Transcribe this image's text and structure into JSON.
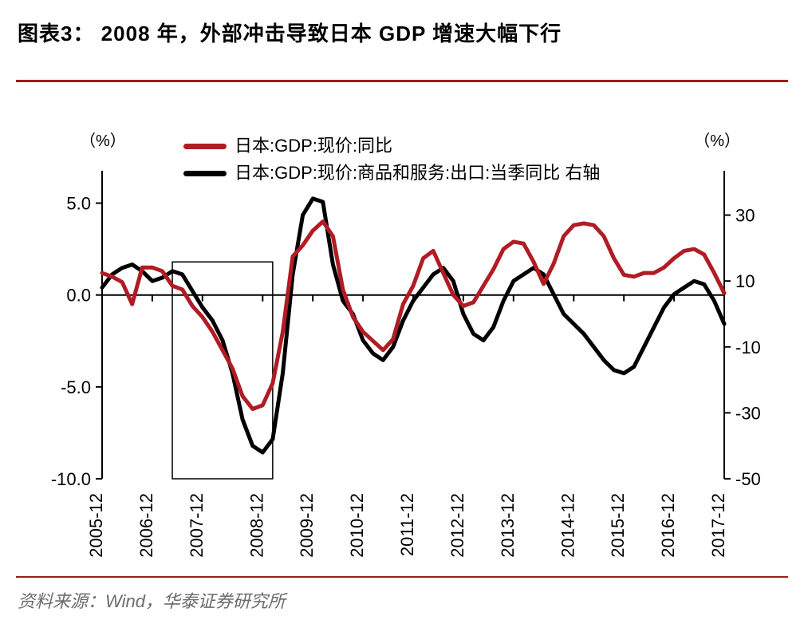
{
  "title": "图表3： 2008 年，外部冲击导致日本 GDP 增速大幅下行",
  "source": "资料来源：Wind，华泰证券研究所",
  "unit_left": "（%）",
  "unit_right": "（%）",
  "legend": {
    "series1": "日本:GDP:现价:同比",
    "series2": "日本:GDP:现价:商品和服务:出口:当季同比 右轴"
  },
  "chart": {
    "type": "line-dual-axis",
    "background_color": "#ffffff",
    "axis_color": "#000000",
    "line_width": 5,
    "series1_color": "#b11c24",
    "series2_color": "#000000",
    "highlight_box_color": "#000000",
    "left_axis": {
      "min": -10.0,
      "max": 6.5,
      "ticks": [
        -10.0,
        -5.0,
        0.0,
        5.0
      ]
    },
    "right_axis": {
      "min": -50,
      "max": 42,
      "ticks": [
        -50,
        -30,
        -10,
        10,
        30
      ]
    },
    "x_categories": [
      "2005-12",
      "2006-12",
      "2007-12",
      "2008-12",
      "2009-12",
      "2010-12",
      "2011-12",
      "2012-12",
      "2013-12",
      "2014-12",
      "2015-12",
      "2016-12",
      "2017-12"
    ],
    "highlight_range_x": [
      7,
      17
    ],
    "highlight_range_y_left": [
      -10.0,
      1.8
    ],
    "series1": {
      "name": "日本:GDP:现价:同比",
      "axis": "left",
      "values": [
        1.2,
        1.0,
        0.7,
        -0.5,
        1.5,
        1.5,
        1.3,
        0.5,
        0.3,
        -0.6,
        -1.2,
        -2.0,
        -3.0,
        -4.0,
        -5.5,
        -6.2,
        -6.0,
        -4.8,
        -2.0,
        2.1,
        2.7,
        3.5,
        4.0,
        3.2,
        0.3,
        -1.2,
        -2.0,
        -2.5,
        -3.0,
        -2.4,
        -0.5,
        0.5,
        2.0,
        2.4,
        1.2,
        0.0,
        -0.6,
        -0.4,
        0.5,
        1.4,
        2.5,
        2.9,
        2.8,
        1.8,
        0.6,
        1.7,
        3.2,
        3.8,
        3.9,
        3.8,
        3.2,
        2.0,
        1.1,
        1.0,
        1.2,
        1.2,
        1.5,
        2.0,
        2.4,
        2.5,
        2.2,
        1.2,
        0.1
      ]
    },
    "series2": {
      "name": "日本:GDP:现价:商品和服务:出口:当季同比 右轴",
      "axis": "right",
      "values": [
        8,
        12,
        14,
        15,
        13,
        10,
        11,
        13,
        12,
        7,
        2,
        -2,
        -8,
        -18,
        -32,
        -40,
        -42,
        -38,
        -18,
        12,
        30,
        35,
        34,
        15,
        4,
        0,
        -8,
        -12,
        -14,
        -10,
        -2,
        4,
        8,
        12,
        14,
        10,
        0,
        -6,
        -8,
        -4,
        4,
        10,
        12,
        14,
        12,
        6,
        0,
        -3,
        -6,
        -10,
        -14,
        -17,
        -18,
        -16,
        -10,
        -4,
        2,
        6,
        8,
        10,
        9,
        4,
        -3
      ]
    }
  }
}
